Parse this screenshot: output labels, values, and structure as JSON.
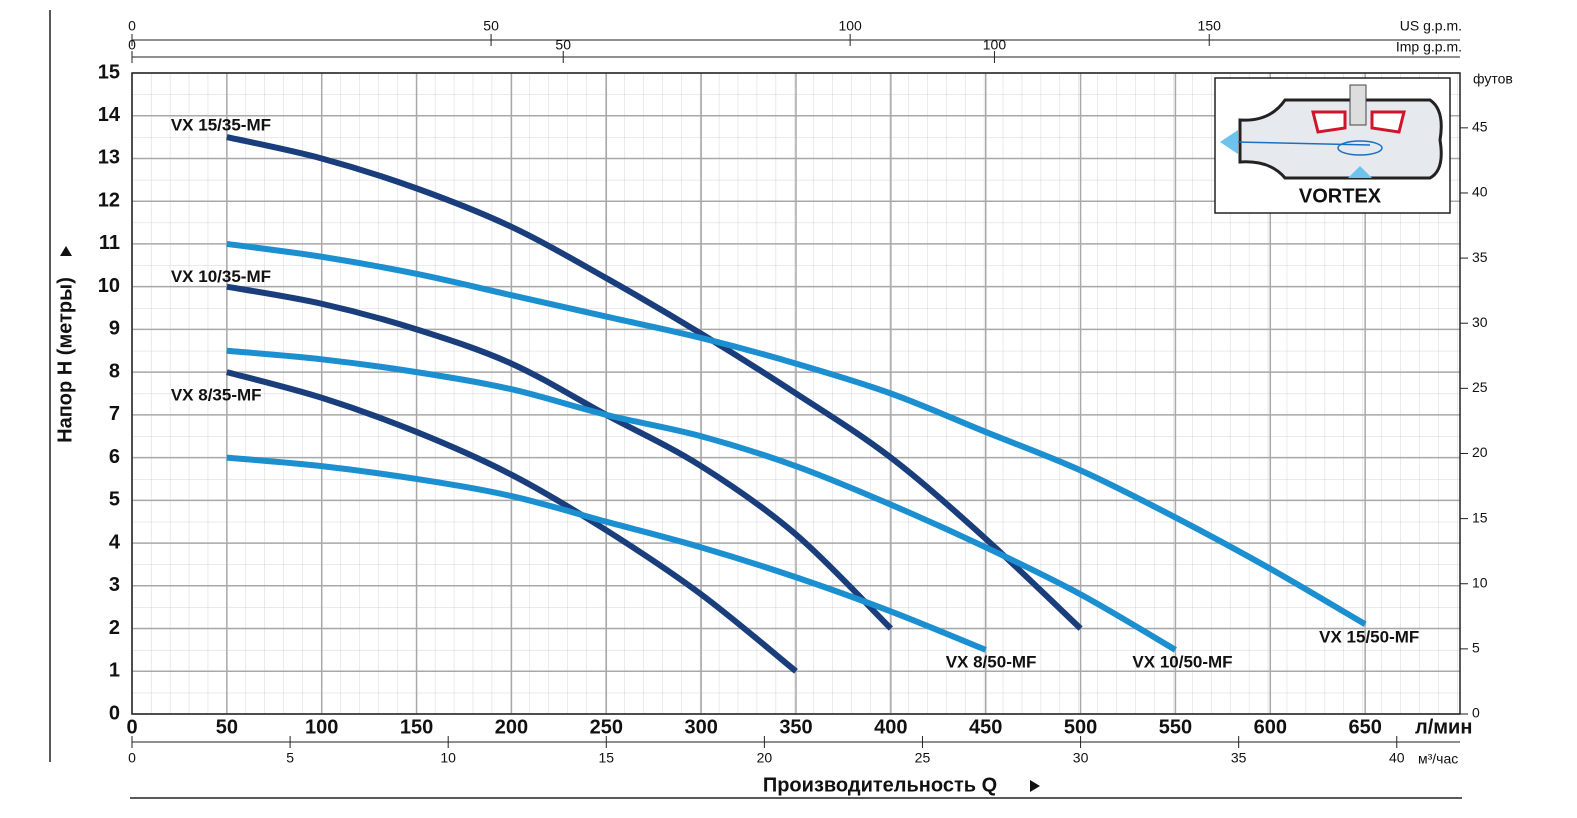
{
  "chart_data": {
    "type": "line",
    "y_label": "Напор Н (метры)",
    "x_label": "Производительность Q",
    "x_unit": "л/мин",
    "xlim": [
      0,
      700
    ],
    "xticks": [
      0,
      50,
      100,
      150,
      200,
      250,
      300,
      350,
      400,
      450,
      500,
      550,
      600,
      650
    ],
    "ylim": [
      0,
      15
    ],
    "yticks": [
      0,
      1,
      2,
      3,
      4,
      5,
      6,
      7,
      8,
      9,
      10,
      11,
      12,
      13,
      14,
      15
    ],
    "grid": true,
    "y2_label": "футов",
    "y2lim": [
      0,
      49.21
    ],
    "y2ticks": [
      0,
      5,
      10,
      15,
      20,
      25,
      30,
      35,
      40,
      45
    ],
    "x_top_us": {
      "label": "US g.p.m.",
      "lim": [
        0,
        184.92
      ],
      "ticks": [
        0,
        50,
        100,
        150
      ]
    },
    "x_top_imp": {
      "label": "Imp g.p.m.",
      "lim": [
        0,
        153.98
      ],
      "ticks": [
        0,
        50,
        100
      ]
    },
    "x_bottom_m3": {
      "label": "м³/час",
      "lim": [
        0,
        42
      ],
      "ticks": [
        0,
        5,
        10,
        15,
        20,
        25,
        30,
        35,
        40
      ]
    },
    "inset_label": "VORTEX",
    "series": [
      {
        "name": "VX 15/35-MF",
        "color": "#1a3d7c",
        "x": [
          50,
          100,
          150,
          200,
          250,
          300,
          350,
          400,
          450,
          500
        ],
        "values": [
          13.5,
          13.0,
          12.3,
          11.4,
          10.2,
          8.9,
          7.5,
          6.0,
          4.1,
          2.0
        ]
      },
      {
        "name": "VX 10/35-MF",
        "color": "#1a3d7c",
        "x": [
          50,
          100,
          150,
          200,
          250,
          300,
          350,
          400
        ],
        "values": [
          10.0,
          9.6,
          9.0,
          8.2,
          7.0,
          5.8,
          4.2,
          2.0
        ]
      },
      {
        "name": "VX 8/35-MF",
        "color": "#1a3d7c",
        "x": [
          50,
          100,
          150,
          200,
          250,
          300,
          350
        ],
        "values": [
          8.0,
          7.4,
          6.6,
          5.6,
          4.3,
          2.8,
          1.0
        ]
      },
      {
        "name": "VX 15/50-MF",
        "color": "#1b8fd0",
        "x": [
          50,
          100,
          150,
          200,
          250,
          300,
          350,
          400,
          450,
          500,
          550,
          600,
          650
        ],
        "values": [
          11.0,
          10.7,
          10.3,
          9.8,
          9.3,
          8.8,
          8.2,
          7.5,
          6.6,
          5.7,
          4.6,
          3.4,
          2.1
        ]
      },
      {
        "name": "VX 10/50-MF",
        "color": "#1b8fd0",
        "x": [
          50,
          100,
          150,
          200,
          250,
          300,
          350,
          400,
          450,
          500,
          550
        ],
        "values": [
          8.5,
          8.3,
          8.0,
          7.6,
          7.0,
          6.5,
          5.8,
          4.9,
          3.9,
          2.8,
          1.5
        ]
      },
      {
        "name": "VX 8/50-MF",
        "color": "#1b8fd0",
        "x": [
          50,
          100,
          150,
          200,
          250,
          300,
          350,
          400,
          450
        ],
        "values": [
          6.0,
          5.8,
          5.5,
          5.1,
          4.5,
          3.9,
          3.2,
          2.4,
          1.5
        ]
      }
    ]
  }
}
